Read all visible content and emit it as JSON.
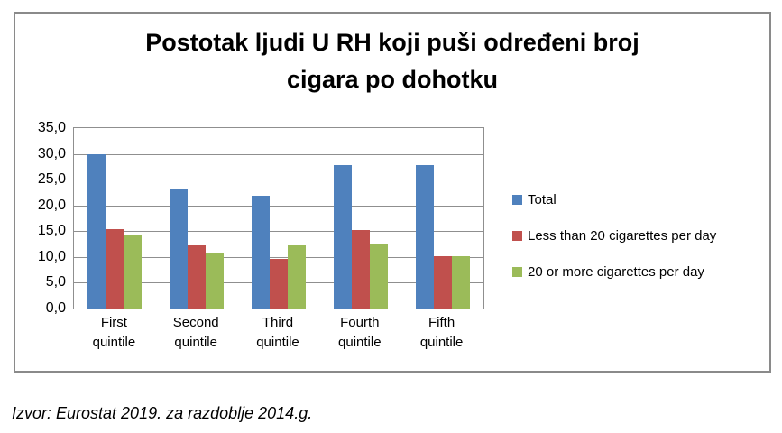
{
  "chart_data": {
    "type": "bar",
    "title": "Postotak ljudi U RH koji puši određeni broj cigara po dohotku",
    "title_display": "Postotak ljudi U RH koji puši određeni broj\ncigara po dohotku",
    "categories": [
      "First quintile",
      "Second quintile",
      "Third quintile",
      "Fourth quintile",
      "Fifth quintile"
    ],
    "series": [
      {
        "name": "Total",
        "color": "#4F81BD",
        "values": [
          29.9,
          23.1,
          21.9,
          27.9,
          27.9
        ]
      },
      {
        "name": "Less than 20 cigarettes per day",
        "color": "#C0504D",
        "values": [
          15.4,
          12.3,
          9.6,
          15.3,
          10.2
        ]
      },
      {
        "name": "20 or more cigarettes per day",
        "color": "#9BBB59",
        "values": [
          14.2,
          10.6,
          12.2,
          12.4,
          10.2
        ]
      }
    ],
    "xlabel": "",
    "ylabel": "",
    "ylim": [
      0,
      35
    ],
    "y_tick_step": 5,
    "y_ticks": [
      "35,0",
      "30,0",
      "25,0",
      "20,0",
      "15,0",
      "10,0",
      "5,0",
      "0,0"
    ],
    "grid": true,
    "legend_position": "right",
    "gridline_color": "#8f8f8f",
    "decimal_separator": ","
  },
  "caption": {
    "text": "Izvor: Eurostat 2019. za razdoblje 2014.g."
  }
}
